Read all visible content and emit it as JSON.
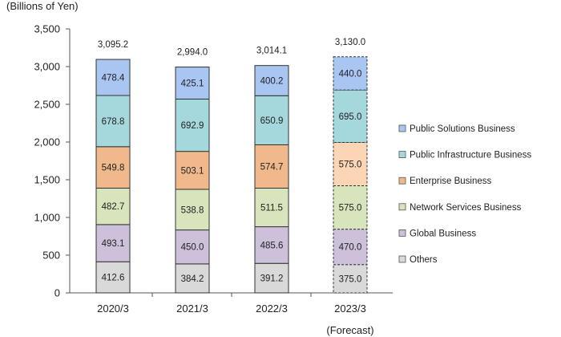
{
  "chart_data": {
    "type": "bar",
    "stacked": true,
    "ylabel": "(Billions  of Yen)",
    "ylim": [
      0,
      3500
    ],
    "yticks": [
      0,
      500,
      1000,
      1500,
      2000,
      2500,
      3000,
      3500
    ],
    "ytick_labels": [
      "0",
      "500",
      "1,000",
      "1,500",
      "2,000",
      "2,500",
      "3,000",
      "3,500"
    ],
    "categories": [
      "2020/3",
      "2021/3",
      "2022/3",
      "2023/3"
    ],
    "category_notes": [
      "",
      "",
      "",
      "(Forecast)"
    ],
    "forecast": [
      false,
      false,
      false,
      true
    ],
    "totals": [
      3095.2,
      2994.0,
      3014.1,
      3130.0
    ],
    "total_labels": [
      "3,095.2",
      "2,994.0",
      "3,014.1",
      "3,130.0"
    ],
    "legend_position": "right",
    "grid": false,
    "series": [
      {
        "name": "Others",
        "color": "#d9d9d9",
        "values": [
          412.6,
          384.2,
          391.2,
          375.0
        ],
        "labels": [
          "412.6",
          "384.2",
          "391.2",
          "375.0"
        ]
      },
      {
        "name": "Global Business",
        "color": "#ccc0da",
        "values": [
          493.1,
          450.0,
          485.6,
          470.0
        ],
        "labels": [
          "493.1",
          "450.0",
          "485.6",
          "470.0"
        ]
      },
      {
        "name": "Network Services Business",
        "color": "#d8e4bc",
        "values": [
          482.7,
          538.8,
          511.5,
          575.0
        ],
        "labels": [
          "482.7",
          "538.8",
          "511.5",
          "575.0"
        ]
      },
      {
        "name": "Enterprise Business",
        "color": "#f0b98c",
        "forecast_color": "#fcd5b4",
        "values": [
          549.8,
          503.1,
          574.7,
          575.0
        ],
        "labels": [
          "549.8",
          "503.1",
          "574.7",
          "575.0"
        ]
      },
      {
        "name": "Public Infrastructure Business",
        "color": "#a5d8dd",
        "values": [
          678.8,
          692.9,
          650.9,
          695.0
        ],
        "labels": [
          "678.8",
          "692.9",
          "650.9",
          "695.0"
        ]
      },
      {
        "name": "Public Solutions Business",
        "color": "#a9c5f2",
        "values": [
          478.4,
          425.1,
          400.2,
          440.0
        ],
        "labels": [
          "478.4",
          "425.1",
          "400.2",
          "440.0"
        ]
      }
    ]
  }
}
